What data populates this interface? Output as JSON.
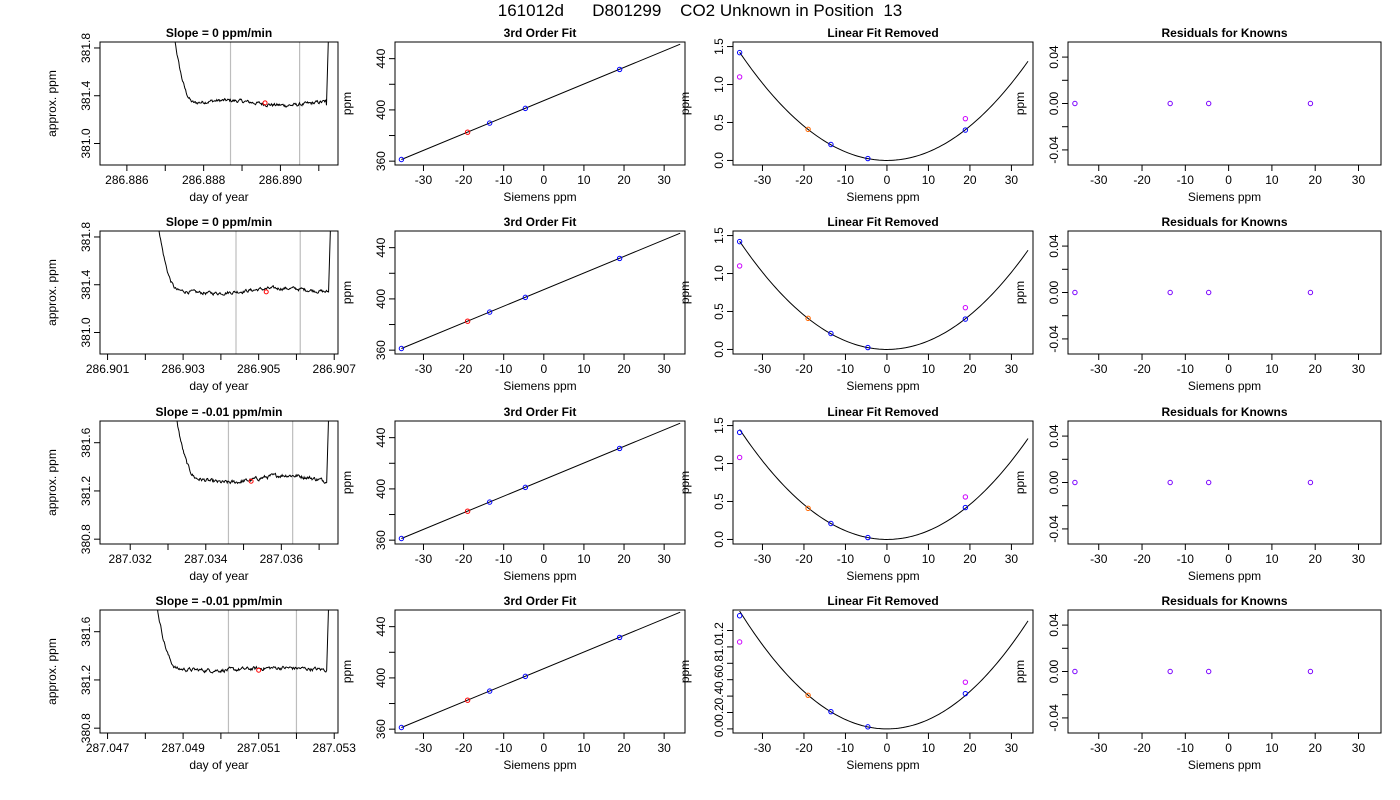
{
  "title": "161012d      D801299    CO2 Unknown in Position  13",
  "chart_data": [
    {
      "type": "line",
      "row": 1,
      "title": "Slope =  0  ppm/min",
      "xlabel": "day of year",
      "ylabel": "approx. ppm",
      "xlim": [
        286.8853,
        286.8915
      ],
      "ylim": [
        380.82,
        381.85
      ],
      "xticks": [
        286.886,
        286.888,
        286.89
      ],
      "xtick_labels": [
        "286.886",
        "286.888",
        "286.890"
      ],
      "xminor_ticks": [
        286.887,
        286.889,
        286.891
      ],
      "yticks": [
        381.0,
        381.4,
        381.8
      ],
      "ytick_labels": [
        "381.0",
        "381.4",
        "381.8"
      ],
      "vlines": [
        286.8887,
        286.8905
      ],
      "marker": {
        "x": 286.8896,
        "y": 381.34
      },
      "trace": {
        "start": 286.88705,
        "end": 286.8912,
        "settle": 286.8878,
        "level": 381.34,
        "spike_top": 382.4,
        "drift": 0.02,
        "noise": 0.012,
        "dip": 381.32
      }
    },
    {
      "type": "line",
      "row": 2,
      "title": "Slope =  0  ppm/min",
      "xlabel": "day of year",
      "ylabel": "approx. ppm",
      "xlim": [
        286.9008,
        286.9071
      ],
      "ylim": [
        380.82,
        381.85
      ],
      "xticks": [
        286.901,
        286.903,
        286.905,
        286.907
      ],
      "xtick_labels": [
        "286.901",
        "286.903",
        "286.905",
        "286.907"
      ],
      "xminor_ticks": [
        286.902,
        286.904,
        286.906
      ],
      "yticks": [
        381.0,
        381.4,
        381.8
      ],
      "ytick_labels": [
        "381.0",
        "381.4",
        "381.8"
      ],
      "vlines": [
        286.9044,
        286.9061
      ],
      "marker": {
        "x": 286.9052,
        "y": 381.34
      },
      "trace": {
        "start": 286.90215,
        "end": 286.90685,
        "settle": 286.9029,
        "level": 381.35,
        "spike_top": 382.4,
        "drift": -0.02,
        "noise": 0.012,
        "dip": 381.34
      }
    },
    {
      "type": "line",
      "row": 3,
      "title": "Slope =  -0.01  ppm/min",
      "xlabel": "day of year",
      "ylabel": "approx. ppm",
      "xlim": [
        287.0312,
        287.0375
      ],
      "ylim": [
        380.76,
        381.78
      ],
      "xticks": [
        287.032,
        287.034,
        287.036
      ],
      "xtick_labels": [
        "287.032",
        "287.034",
        "287.036"
      ],
      "xminor_ticks": [
        287.033,
        287.035,
        287.037
      ],
      "yticks": [
        380.8,
        381.2,
        381.6
      ],
      "ytick_labels": [
        "380.8",
        "381.2",
        "381.6"
      ],
      "vlines": [
        287.0346,
        287.0363
      ],
      "marker": {
        "x": 287.0352,
        "y": 381.28
      },
      "trace": {
        "start": 287.033,
        "end": 287.0372,
        "settle": 287.0338,
        "level": 381.3,
        "spike_top": 382.3,
        "drift": -0.03,
        "noise": 0.013,
        "dip": 381.27
      }
    },
    {
      "type": "line",
      "row": 4,
      "title": "Slope =  -0.01  ppm/min",
      "xlabel": "day of year",
      "ylabel": "approx. ppm",
      "xlim": [
        287.0468,
        287.0531
      ],
      "ylim": [
        380.76,
        381.78
      ],
      "xticks": [
        287.047,
        287.049,
        287.051,
        287.053
      ],
      "xtick_labels": [
        "287.047",
        "287.049",
        "287.051",
        "287.053"
      ],
      "xminor_ticks": [
        287.048,
        287.05,
        287.052
      ],
      "yticks": [
        380.8,
        381.2,
        381.6
      ],
      "ytick_labels": [
        "380.8",
        "381.2",
        "381.6"
      ],
      "vlines": [
        287.0502,
        287.052
      ],
      "marker": {
        "x": 287.051,
        "y": 381.28
      },
      "trace": {
        "start": 287.0481,
        "end": 287.0528,
        "settle": 287.0489,
        "level": 381.29,
        "spike_top": 382.3,
        "drift": -0.01,
        "noise": 0.013,
        "dip": 381.28
      }
    },
    {
      "type": "scatter",
      "row": 1,
      "title": "3rd Order Fit",
      "xlabel": "Siemens ppm",
      "ylabel": "ppm",
      "xlim": [
        -37.1,
        35.2
      ],
      "ylim": [
        357,
        453
      ],
      "xticks": [
        -30,
        -20,
        -10,
        0,
        10,
        20,
        30
      ],
      "yticks": [
        360,
        400,
        440
      ],
      "y_minor_ticks": [
        380,
        420
      ],
      "line": [
        [
          -35.5,
          361.3
        ],
        [
          34.0,
          451.3
        ]
      ],
      "points": [
        {
          "x": -35.5,
          "y": 361.3,
          "color": "#0000ff"
        },
        {
          "x": -19.0,
          "y": 382.6,
          "color": "#ff0000"
        },
        {
          "x": -13.5,
          "y": 389.7,
          "color": "#0000ff"
        },
        {
          "x": -4.6,
          "y": 401.2,
          "color": "#0000ff"
        },
        {
          "x": 18.9,
          "y": 431.6,
          "color": "#0000ff"
        }
      ]
    },
    {
      "type": "scatter",
      "row": 2,
      "title": "3rd Order Fit",
      "xlabel": "Siemens ppm",
      "ylabel": "ppm",
      "xlim": [
        -37.1,
        35.2
      ],
      "ylim": [
        357,
        453
      ],
      "xticks": [
        -30,
        -20,
        -10,
        0,
        10,
        20,
        30
      ],
      "yticks": [
        360,
        400,
        440
      ],
      "y_minor_ticks": [
        380,
        420
      ],
      "line": [
        [
          -35.5,
          361.3
        ],
        [
          34.0,
          451.3
        ]
      ],
      "points": [
        {
          "x": -35.5,
          "y": 361.3,
          "color": "#0000ff"
        },
        {
          "x": -19.0,
          "y": 382.6,
          "color": "#ff0000"
        },
        {
          "x": -13.5,
          "y": 389.7,
          "color": "#0000ff"
        },
        {
          "x": -4.6,
          "y": 401.2,
          "color": "#0000ff"
        },
        {
          "x": 18.9,
          "y": 431.6,
          "color": "#0000ff"
        }
      ]
    },
    {
      "type": "scatter",
      "row": 3,
      "title": "3rd Order Fit",
      "xlabel": "Siemens ppm",
      "ylabel": "ppm",
      "xlim": [
        -37.1,
        35.2
      ],
      "ylim": [
        357,
        453
      ],
      "xticks": [
        -30,
        -20,
        -10,
        0,
        10,
        20,
        30
      ],
      "yticks": [
        360,
        400,
        440
      ],
      "y_minor_ticks": [
        380,
        420
      ],
      "line": [
        [
          -35.5,
          361.3
        ],
        [
          34.0,
          451.3
        ]
      ],
      "points": [
        {
          "x": -35.5,
          "y": 361.3,
          "color": "#0000ff"
        },
        {
          "x": -19.0,
          "y": 382.6,
          "color": "#ff0000"
        },
        {
          "x": -13.5,
          "y": 389.7,
          "color": "#0000ff"
        },
        {
          "x": -4.6,
          "y": 401.2,
          "color": "#0000ff"
        },
        {
          "x": 18.9,
          "y": 431.6,
          "color": "#0000ff"
        }
      ]
    },
    {
      "type": "scatter",
      "row": 4,
      "title": "3rd Order Fit",
      "xlabel": "Siemens ppm",
      "ylabel": "ppm",
      "xlim": [
        -37.1,
        35.2
      ],
      "ylim": [
        357,
        453
      ],
      "xticks": [
        -30,
        -20,
        -10,
        0,
        10,
        20,
        30
      ],
      "yticks": [
        360,
        400,
        440
      ],
      "y_minor_ticks": [
        380,
        420
      ],
      "line": [
        [
          -35.5,
          361.3
        ],
        [
          34.0,
          451.3
        ]
      ],
      "points": [
        {
          "x": -35.5,
          "y": 361.3,
          "color": "#0000ff"
        },
        {
          "x": -19.0,
          "y": 382.6,
          "color": "#ff0000"
        },
        {
          "x": -13.5,
          "y": 389.7,
          "color": "#0000ff"
        },
        {
          "x": -4.6,
          "y": 401.2,
          "color": "#0000ff"
        },
        {
          "x": 18.9,
          "y": 431.6,
          "color": "#0000ff"
        }
      ]
    },
    {
      "type": "scatter",
      "row": 1,
      "title": "Linear Fit Removed",
      "xlabel": "Siemens ppm",
      "ylabel": "ppm",
      "xlim": [
        -37.1,
        35.2
      ],
      "ylim": [
        -0.06,
        1.56
      ],
      "xticks": [
        -30,
        -20,
        -10,
        0,
        10,
        20,
        30
      ],
      "yticks": [
        0.0,
        0.5,
        1.0,
        1.5
      ],
      "ytick_labels": [
        "0.0",
        "0.5",
        "1.0",
        "1.5"
      ],
      "curve": {
        "a": 0.00113,
        "from": -35.5,
        "to": 34.0
      },
      "points": [
        {
          "x": -35.5,
          "y": 1.42,
          "color": "#0000ff"
        },
        {
          "x": -19.0,
          "y": 0.41,
          "color": "#ff6600"
        },
        {
          "x": -13.5,
          "y": 0.21,
          "color": "#0000ff"
        },
        {
          "x": -4.6,
          "y": 0.025,
          "color": "#0000ff"
        },
        {
          "x": 18.9,
          "y": 0.4,
          "color": "#0000ff"
        },
        {
          "x": -35.5,
          "y": 1.1,
          "color": "#cc00ff"
        },
        {
          "x": 18.9,
          "y": 0.55,
          "color": "#cc00ff"
        }
      ]
    },
    {
      "type": "scatter",
      "row": 2,
      "title": "Linear Fit Removed",
      "xlabel": "Siemens ppm",
      "ylabel": "ppm",
      "xlim": [
        -37.1,
        35.2
      ],
      "ylim": [
        -0.06,
        1.56
      ],
      "xticks": [
        -30,
        -20,
        -10,
        0,
        10,
        20,
        30
      ],
      "yticks": [
        0.0,
        0.5,
        1.0,
        1.5
      ],
      "ytick_labels": [
        "0.0",
        "0.5",
        "1.0",
        "1.5"
      ],
      "curve": {
        "a": 0.00113,
        "from": -35.5,
        "to": 34.0
      },
      "points": [
        {
          "x": -35.5,
          "y": 1.42,
          "color": "#0000ff"
        },
        {
          "x": -19.0,
          "y": 0.41,
          "color": "#ff6600"
        },
        {
          "x": -13.5,
          "y": 0.21,
          "color": "#0000ff"
        },
        {
          "x": -4.6,
          "y": 0.025,
          "color": "#0000ff"
        },
        {
          "x": 18.9,
          "y": 0.4,
          "color": "#0000ff"
        },
        {
          "x": -35.5,
          "y": 1.1,
          "color": "#cc00ff"
        },
        {
          "x": 18.9,
          "y": 0.55,
          "color": "#cc00ff"
        }
      ]
    },
    {
      "type": "scatter",
      "row": 3,
      "title": "Linear Fit Removed",
      "xlabel": "Siemens ppm",
      "ylabel": "ppm",
      "xlim": [
        -37.1,
        35.2
      ],
      "ylim": [
        -0.06,
        1.56
      ],
      "xticks": [
        -30,
        -20,
        -10,
        0,
        10,
        20,
        30
      ],
      "yticks": [
        0.0,
        0.5,
        1.0,
        1.5
      ],
      "ytick_labels": [
        "0.0",
        "0.5",
        "1.0",
        "1.5"
      ],
      "curve": {
        "a": 0.00115,
        "from": -35.5,
        "to": 34.0
      },
      "points": [
        {
          "x": -35.5,
          "y": 1.41,
          "color": "#0000ff"
        },
        {
          "x": -19.0,
          "y": 0.41,
          "color": "#ff6600"
        },
        {
          "x": -13.5,
          "y": 0.21,
          "color": "#0000ff"
        },
        {
          "x": -4.6,
          "y": 0.025,
          "color": "#0000ff"
        },
        {
          "x": 18.9,
          "y": 0.42,
          "color": "#0000ff"
        },
        {
          "x": -35.5,
          "y": 1.08,
          "color": "#cc00ff"
        },
        {
          "x": 18.9,
          "y": 0.56,
          "color": "#cc00ff"
        }
      ]
    },
    {
      "type": "scatter",
      "row": 4,
      "title": "Linear Fit Removed",
      "xlabel": "Siemens ppm",
      "ylabel": "ppm",
      "xlim": [
        -37.1,
        35.2
      ],
      "ylim": [
        -0.05,
        1.45
      ],
      "xticks": [
        -30,
        -20,
        -10,
        0,
        10,
        20,
        30
      ],
      "yticks": [
        0.0,
        0.2,
        0.4,
        0.6,
        0.8,
        1.0,
        1.2
      ],
      "ytick_labels": [
        "0.0",
        "0.2",
        "0.4",
        "0.6",
        "0.8",
        "1.0",
        "1.2"
      ],
      "curve": {
        "a": 0.00114,
        "from": -35.5,
        "to": 34.0
      },
      "points": [
        {
          "x": -35.5,
          "y": 1.38,
          "color": "#0000ff"
        },
        {
          "x": -19.0,
          "y": 0.41,
          "color": "#ff6600"
        },
        {
          "x": -13.5,
          "y": 0.21,
          "color": "#0000ff"
        },
        {
          "x": -4.6,
          "y": 0.025,
          "color": "#0000ff"
        },
        {
          "x": 18.9,
          "y": 0.43,
          "color": "#0000ff"
        },
        {
          "x": -35.5,
          "y": 1.06,
          "color": "#cc00ff"
        },
        {
          "x": 18.9,
          "y": 0.57,
          "color": "#cc00ff"
        }
      ]
    },
    {
      "type": "scatter",
      "row": 1,
      "title": "Residuals for Knowns",
      "xlabel": "Siemens ppm",
      "ylabel": "ppm",
      "xlim": [
        -37.1,
        35.2
      ],
      "ylim": [
        -0.053,
        0.053
      ],
      "xticks": [
        -30,
        -20,
        -10,
        0,
        10,
        20,
        30
      ],
      "yticks": [
        -0.04,
        0.0,
        0.04
      ],
      "ytick_labels": [
        "-0.04",
        "0.00",
        "0.04"
      ],
      "y_minor_ticks": [
        -0.02,
        0.02
      ],
      "points": [
        {
          "x": -35.5,
          "y": 0.0,
          "color": "#7a00ff"
        },
        {
          "x": -13.5,
          "y": 0.0,
          "color": "#7a00ff"
        },
        {
          "x": -4.6,
          "y": 0.0,
          "color": "#7a00ff"
        },
        {
          "x": 18.9,
          "y": 0.0,
          "color": "#7a00ff"
        }
      ]
    },
    {
      "type": "scatter",
      "row": 2,
      "title": "Residuals for Knowns",
      "xlabel": "Siemens ppm",
      "ylabel": "ppm",
      "xlim": [
        -37.1,
        35.2
      ],
      "ylim": [
        -0.053,
        0.053
      ],
      "xticks": [
        -30,
        -20,
        -10,
        0,
        10,
        20,
        30
      ],
      "yticks": [
        -0.04,
        0.0,
        0.04
      ],
      "ytick_labels": [
        "-0.04",
        "0.00",
        "0.04"
      ],
      "y_minor_ticks": [
        -0.02,
        0.02
      ],
      "points": [
        {
          "x": -35.5,
          "y": 0.0,
          "color": "#7a00ff"
        },
        {
          "x": -13.5,
          "y": 0.0,
          "color": "#7a00ff"
        },
        {
          "x": -4.6,
          "y": 0.0,
          "color": "#7a00ff"
        },
        {
          "x": 18.9,
          "y": 0.0,
          "color": "#7a00ff"
        }
      ]
    },
    {
      "type": "scatter",
      "row": 3,
      "title": "Residuals for Knowns",
      "xlabel": "Siemens ppm",
      "ylabel": "ppm",
      "xlim": [
        -37.1,
        35.2
      ],
      "ylim": [
        -0.053,
        0.053
      ],
      "xticks": [
        -30,
        -20,
        -10,
        0,
        10,
        20,
        30
      ],
      "yticks": [
        -0.04,
        0.0,
        0.04
      ],
      "ytick_labels": [
        "-0.04",
        "0.00",
        "0.04"
      ],
      "y_minor_ticks": [
        -0.02,
        0.02
      ],
      "points": [
        {
          "x": -35.5,
          "y": 0.0,
          "color": "#7a00ff"
        },
        {
          "x": -13.5,
          "y": 0.0,
          "color": "#7a00ff"
        },
        {
          "x": -4.6,
          "y": 0.0,
          "color": "#7a00ff"
        },
        {
          "x": 18.9,
          "y": 0.0,
          "color": "#7a00ff"
        }
      ]
    },
    {
      "type": "scatter",
      "row": 4,
      "title": "Residuals for Knowns",
      "xlabel": "Siemens ppm",
      "ylabel": "ppm",
      "xlim": [
        -37.1,
        35.2
      ],
      "ylim": [
        -0.053,
        0.053
      ],
      "xticks": [
        -30,
        -20,
        -10,
        0,
        10,
        20,
        30
      ],
      "yticks": [
        -0.04,
        0.0,
        0.04
      ],
      "ytick_labels": [
        "-0.04",
        "0.00",
        "0.04"
      ],
      "y_minor_ticks": [
        -0.02,
        0.02
      ],
      "points": [
        {
          "x": -35.5,
          "y": 0.0,
          "color": "#7a00ff"
        },
        {
          "x": -13.5,
          "y": 0.0,
          "color": "#7a00ff"
        },
        {
          "x": -4.6,
          "y": 0.0,
          "color": "#7a00ff"
        },
        {
          "x": 18.9,
          "y": 0.0,
          "color": "#7a00ff"
        }
      ]
    }
  ]
}
